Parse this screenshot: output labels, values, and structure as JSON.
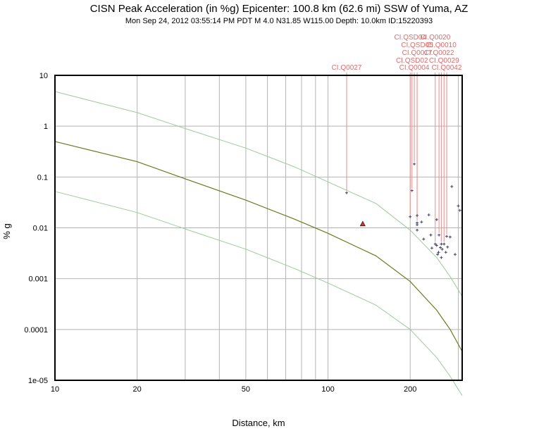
{
  "header": {
    "title": "CISN Peak Acceleration (in %g) Epicenter: 100.8 km (62.6 mi) SSW of Yuma, AZ",
    "subtitle": "Mon Sep 24, 2012 03:55:14 PM PDT   M 4.0   N31.85 W115.00   Depth: 10.0km   ID:15220393"
  },
  "colors": {
    "curve": "#6b7a1e",
    "bounds": "#9ccc9c",
    "label": "#e06a6a",
    "leader": "#e88c8c",
    "grid": "#b4b4b4",
    "point": "#404060",
    "triangle": "#cc3333"
  },
  "chart_data": {
    "type": "scatter",
    "xlabel": "Distance, km",
    "ylabel": "% g",
    "x_scale": "log",
    "y_scale": "log",
    "xlim": [
      10,
      310
    ],
    "ylim": [
      1e-05,
      10
    ],
    "x_ticks": [
      {
        "value": 10,
        "label": "10"
      },
      {
        "value": 20,
        "label": "20"
      },
      {
        "value": 50,
        "label": "50"
      },
      {
        "value": 100,
        "label": "100"
      },
      {
        "value": 200,
        "label": "200"
      }
    ],
    "x_grid": [
      10,
      20,
      30,
      40,
      50,
      60,
      70,
      80,
      90,
      100,
      200,
      300
    ],
    "y_ticks": [
      {
        "value": 10,
        "label": "10"
      },
      {
        "value": 1,
        "label": "1"
      },
      {
        "value": 0.1,
        "label": "0.1"
      },
      {
        "value": 0.01,
        "label": "0.01"
      },
      {
        "value": 0.001,
        "label": "0.001"
      },
      {
        "value": 0.0001,
        "label": "0.0001"
      },
      {
        "value": 1e-05,
        "label": "1e-05"
      }
    ],
    "grid": true,
    "curves": {
      "median": [
        [
          10,
          0.5
        ],
        [
          20,
          0.2
        ],
        [
          30,
          0.092
        ],
        [
          50,
          0.035
        ],
        [
          75,
          0.015
        ],
        [
          100,
          0.0078
        ],
        [
          150,
          0.0028
        ],
        [
          200,
          0.00088
        ],
        [
          250,
          0.00024
        ],
        [
          280,
          0.0001
        ],
        [
          310,
          3.7e-05
        ]
      ],
      "upper": [
        [
          10,
          4.8
        ],
        [
          20,
          1.85
        ],
        [
          30,
          0.9
        ],
        [
          50,
          0.37
        ],
        [
          75,
          0.16
        ],
        [
          100,
          0.08
        ],
        [
          150,
          0.03
        ],
        [
          200,
          0.009
        ],
        [
          250,
          0.0026
        ],
        [
          280,
          0.0011
        ],
        [
          310,
          0.00045
        ]
      ],
      "lower": [
        [
          10,
          0.052
        ],
        [
          20,
          0.02
        ],
        [
          30,
          0.0095
        ],
        [
          50,
          0.0038
        ],
        [
          75,
          0.0016
        ],
        [
          100,
          0.00082
        ],
        [
          150,
          0.0003
        ],
        [
          200,
          0.0001
        ],
        [
          250,
          2.8e-05
        ],
        [
          280,
          1.2e-05
        ],
        [
          310,
          5e-06
        ]
      ]
    },
    "labeled_stations": [
      {
        "name": "CI.Q0027",
        "x": 117,
        "y": 0.049,
        "row": 0
      },
      {
        "name": "CI.Q0004",
        "x": 207,
        "y": 0.18,
        "row": 0
      },
      {
        "name": "CI.QSD02",
        "x": 203,
        "y": 0.054,
        "row": 1
      },
      {
        "name": "CI.Q0017",
        "x": 212,
        "y": 0.0175,
        "row": 2
      },
      {
        "name": "CI.QSD05",
        "x": 212,
        "y": 0.0125,
        "row": 3
      },
      {
        "name": "CI.QSD04",
        "x": 200,
        "y": 0.0165,
        "row": 4
      },
      {
        "name": "CI.Q0042",
        "x": 272,
        "y": 0.0068,
        "row": 0
      },
      {
        "name": "CI.Q0029",
        "x": 266,
        "y": 0.0048,
        "row": 1
      },
      {
        "name": "CI.Q0022",
        "x": 255,
        "y": 0.0072,
        "row": 2
      },
      {
        "name": "CI.Q0010",
        "x": 260,
        "y": 0.0048,
        "row": 3
      },
      {
        "name": "CI.Q0020",
        "x": 247,
        "y": 0.0048,
        "row": 4
      }
    ],
    "other_stations": [
      {
        "x": 212,
        "y": 0.0115
      },
      {
        "x": 212,
        "y": 0.009
      },
      {
        "x": 220,
        "y": 0.013
      },
      {
        "x": 224,
        "y": 0.006
      },
      {
        "x": 234,
        "y": 0.018
      },
      {
        "x": 238,
        "y": 0.0072
      },
      {
        "x": 240,
        "y": 0.004
      },
      {
        "x": 250,
        "y": 0.0145
      },
      {
        "x": 250,
        "y": 0.0045
      },
      {
        "x": 252,
        "y": 0.003
      },
      {
        "x": 254,
        "y": 0.0033
      },
      {
        "x": 258,
        "y": 0.0041
      },
      {
        "x": 260,
        "y": 0.0026
      },
      {
        "x": 262,
        "y": 0.0038
      },
      {
        "x": 270,
        "y": 0.0033
      },
      {
        "x": 274,
        "y": 0.0042
      },
      {
        "x": 280,
        "y": 0.0066
      },
      {
        "x": 284,
        "y": 0.065
      },
      {
        "x": 292,
        "y": 0.003
      },
      {
        "x": 300,
        "y": 0.027
      },
      {
        "x": 304,
        "y": 0.022
      }
    ],
    "triangle": {
      "x": 134,
      "y": 0.012
    }
  }
}
